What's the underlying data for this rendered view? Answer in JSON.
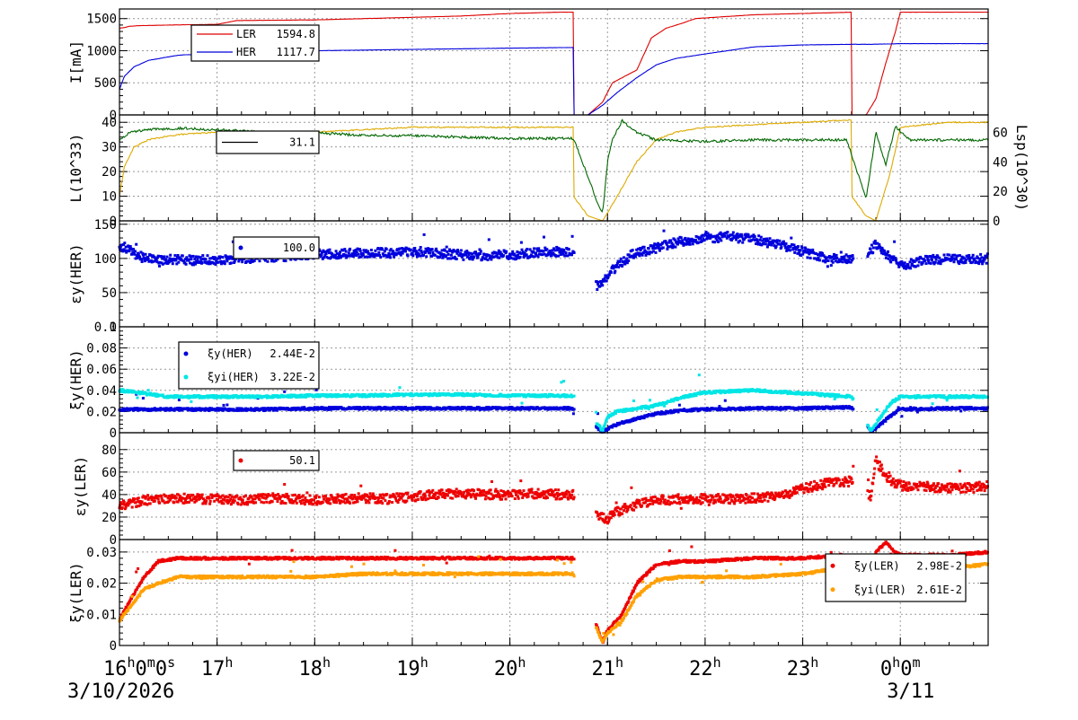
{
  "time_axis": {
    "tick_labels": [
      {
        "t": 0,
        "main": "16",
        "sup": "h",
        "rest": "0",
        "sup2": "m",
        "rest2": "0",
        "sup3": "s"
      },
      {
        "t": 1,
        "main": "17",
        "sup": "h"
      },
      {
        "t": 2,
        "main": "18",
        "sup": "h"
      },
      {
        "t": 3,
        "main": "19",
        "sup": "h"
      },
      {
        "t": 4,
        "main": "20",
        "sup": "h"
      },
      {
        "t": 5,
        "main": "21",
        "sup": "h"
      },
      {
        "t": 6,
        "main": "22",
        "sup": "h"
      },
      {
        "t": 7,
        "main": "23",
        "sup": "h"
      },
      {
        "t": 8,
        "main": "0",
        "sup": "h",
        "rest": "0",
        "sup2": "m"
      }
    ],
    "date_labels": [
      {
        "t": 0,
        "text": "3/10/2026"
      },
      {
        "t": 8,
        "text": "3/11"
      }
    ],
    "range_hours": [
      0,
      8.9
    ]
  },
  "chart_data": [
    {
      "type": "line",
      "panel": "current",
      "ylabel": "I[mA]",
      "ylim": [
        0,
        1650
      ],
      "yticks": [
        0,
        500,
        1000,
        1500
      ],
      "grid": true,
      "legend": [
        {
          "name": "LER",
          "value": "1594.8",
          "color": "#dd0000"
        },
        {
          "name": "HER",
          "value": "1117.7",
          "color": "#0000dd"
        }
      ],
      "series": [
        {
          "name": "LER",
          "color": "#dd0000",
          "x": [
            0,
            0.05,
            0.1,
            0.2,
            0.5,
            1.0,
            1.2,
            2.0,
            3.0,
            3.5,
            4.0,
            4.5,
            4.65,
            4.65,
            4.8,
            4.95,
            5.05,
            5.3,
            5.45,
            5.6,
            5.75,
            5.9,
            6.5,
            7.0,
            7.5,
            7.5,
            7.65,
            7.75,
            7.85,
            7.95,
            8.0,
            8.9
          ],
          "y": [
            1350,
            1360,
            1380,
            1390,
            1400,
            1410,
            1470,
            1480,
            1520,
            1540,
            1580,
            1600,
            1600,
            0,
            0,
            200,
            500,
            700,
            1200,
            1350,
            1420,
            1500,
            1560,
            1580,
            1600,
            0,
            0,
            250,
            800,
            1300,
            1600,
            1600
          ]
        },
        {
          "name": "HER",
          "color": "#0000dd",
          "x": [
            0,
            0.05,
            0.15,
            0.3,
            0.6,
            1.0,
            1.5,
            2.0,
            3.0,
            4.0,
            4.65,
            4.65,
            4.8,
            4.95,
            5.1,
            5.3,
            5.5,
            5.7,
            6.0,
            6.5,
            7.0,
            7.5,
            7.7,
            8.0,
            8.9
          ],
          "y": [
            400,
            600,
            750,
            850,
            930,
            960,
            980,
            1000,
            1020,
            1040,
            1050,
            0,
            0,
            150,
            350,
            580,
            780,
            880,
            950,
            1060,
            1090,
            1100,
            1100,
            1110,
            1110
          ]
        }
      ]
    },
    {
      "type": "line",
      "panel": "luminosity",
      "ylabel": "L(10^33)",
      "ylim": [
        0,
        43
      ],
      "yticks": [
        0,
        10,
        20,
        30,
        40
      ],
      "y2label": "Lsp(10^30)",
      "y2lim": [
        0,
        72
      ],
      "y2ticks": [
        0,
        20,
        40,
        60
      ],
      "grid": true,
      "legend": [
        {
          "name": "",
          "value": "31.1",
          "color": "#000000"
        }
      ],
      "series": [
        {
          "name": "L",
          "axis": "left",
          "color": "#ddaa00",
          "x": [
            0,
            0.05,
            0.15,
            0.3,
            0.6,
            1.0,
            1.5,
            2.0,
            3.0,
            4.0,
            4.65,
            4.65,
            4.8,
            4.95,
            5.1,
            5.3,
            5.5,
            5.7,
            6.0,
            6.5,
            7.0,
            7.5,
            7.5,
            7.65,
            7.75,
            7.9,
            8.0,
            8.5,
            8.9
          ],
          "y": [
            10,
            22,
            30,
            33,
            35,
            36,
            36,
            36,
            38,
            38,
            38,
            10,
            2,
            0,
            10,
            24,
            33,
            36,
            38,
            39,
            40,
            41,
            10,
            2,
            0,
            20,
            38,
            40,
            40
          ]
        },
        {
          "name": "Lsp",
          "axis": "right",
          "color": "#006600",
          "x": [
            0,
            0.1,
            0.3,
            0.6,
            1.0,
            1.5,
            2.0,
            2.5,
            3.0,
            3.5,
            4.0,
            4.65,
            4.8,
            4.9,
            4.95,
            5.0,
            5.05,
            5.15,
            5.3,
            5.5,
            6.0,
            6.5,
            7.0,
            7.45,
            7.55,
            7.65,
            7.75,
            7.85,
            7.95,
            8.1,
            8.5,
            8.9
          ],
          "y": [
            55,
            60,
            62,
            63,
            62,
            60,
            60,
            58,
            58,
            57,
            56,
            56,
            30,
            12,
            5,
            40,
            55,
            68,
            60,
            55,
            54,
            55,
            55,
            55,
            35,
            15,
            60,
            38,
            64,
            55,
            55,
            55
          ]
        }
      ]
    },
    {
      "type": "scatter",
      "panel": "eps_y_her",
      "ylabel": "εy(HER)",
      "ylim": [
        0,
        155
      ],
      "yticks": [
        0,
        50,
        100,
        150
      ],
      "grid": true,
      "legend": [
        {
          "name": "",
          "value": "100.0",
          "color": "#0000dd"
        }
      ],
      "series": [
        {
          "name": "εy(HER)",
          "color": "#0000dd",
          "x": [
            0,
            0.25,
            0.5,
            0.75,
            1.0,
            1.25,
            1.5,
            1.75,
            2.0,
            2.25,
            2.5,
            2.75,
            3.0,
            3.25,
            3.5,
            3.75,
            4.0,
            4.25,
            4.5,
            4.65,
            4.9,
            5.0,
            5.1,
            5.25,
            5.5,
            5.75,
            6.0,
            6.25,
            6.5,
            6.75,
            7.0,
            7.25,
            7.5,
            7.6,
            7.75,
            7.9,
            8.0,
            8.25,
            8.5,
            8.75,
            8.9
          ],
          "y": [
            120,
            100,
            98,
            97,
            98,
            100,
            102,
            103,
            106,
            107,
            108,
            108,
            110,
            108,
            105,
            104,
            105,
            108,
            110,
            110,
            60,
            75,
            90,
            105,
            115,
            125,
            130,
            132,
            128,
            120,
            110,
            100,
            98,
            95,
            120,
            100,
            88,
            98,
            100,
            98,
            100
          ]
        }
      ]
    },
    {
      "type": "scatter",
      "panel": "xi_y_her",
      "ylabel": "ξy(HER)",
      "ylim": [
        0,
        0.1
      ],
      "yticks": [
        0,
        0.02,
        0.04,
        0.06,
        0.08,
        0.1
      ],
      "grid": true,
      "legend": [
        {
          "name": "ξy(HER)",
          "value": "2.44E-2",
          "color": "#0000dd"
        },
        {
          "name": "ξyi(HER)",
          "value": "3.22E-2",
          "color": "#00e5e5"
        }
      ],
      "series": [
        {
          "name": "ξy(HER)",
          "color": "#0000dd",
          "x": [
            0,
            0.5,
            1.0,
            1.5,
            2.0,
            2.5,
            3.0,
            3.5,
            4.0,
            4.65,
            4.95,
            5.0,
            5.1,
            5.25,
            5.5,
            5.75,
            6.0,
            6.5,
            7.0,
            7.5,
            7.7,
            7.8,
            7.9,
            8.0,
            8.5,
            8.9
          ],
          "y": [
            0.022,
            0.022,
            0.022,
            0.022,
            0.023,
            0.023,
            0.023,
            0.023,
            0.023,
            0.023,
            0.001,
            0.004,
            0.008,
            0.012,
            0.018,
            0.021,
            0.022,
            0.023,
            0.023,
            0.024,
            0.001,
            0.008,
            0.016,
            0.022,
            0.023,
            0.023
          ]
        },
        {
          "name": "ξyi(HER)",
          "color": "#00e5e5",
          "x": [
            0,
            0.5,
            1.0,
            1.5,
            2.0,
            2.5,
            3.0,
            3.5,
            4.0,
            4.65,
            4.95,
            5.0,
            5.1,
            5.25,
            5.5,
            5.75,
            6.0,
            6.5,
            7.0,
            7.5,
            7.7,
            7.8,
            7.9,
            8.0,
            8.5,
            8.9
          ],
          "y": [
            0.04,
            0.034,
            0.034,
            0.034,
            0.035,
            0.035,
            0.036,
            0.036,
            0.035,
            0.035,
            0.002,
            0.015,
            0.02,
            0.022,
            0.026,
            0.033,
            0.038,
            0.04,
            0.037,
            0.034,
            0.002,
            0.015,
            0.028,
            0.034,
            0.034,
            0.034
          ]
        }
      ]
    },
    {
      "type": "scatter",
      "panel": "eps_y_ler",
      "ylabel": "εy(LER)",
      "ylim": [
        0,
        95
      ],
      "yticks": [
        0,
        20,
        40,
        60,
        80
      ],
      "grid": true,
      "legend": [
        {
          "name": "",
          "value": "50.1",
          "color": "#ee0000"
        }
      ],
      "series": [
        {
          "name": "εy(LER)",
          "color": "#ee0000",
          "x": [
            0,
            0.25,
            0.5,
            0.75,
            1.0,
            1.25,
            1.5,
            1.75,
            2.0,
            2.25,
            2.5,
            2.75,
            3.0,
            3.25,
            3.5,
            3.75,
            4.0,
            4.25,
            4.5,
            4.65,
            4.9,
            5.0,
            5.1,
            5.25,
            5.5,
            5.75,
            6.0,
            6.25,
            6.5,
            6.75,
            7.0,
            7.25,
            7.5,
            7.7,
            7.75,
            7.9,
            8.0,
            8.25,
            8.5,
            8.75,
            8.9
          ],
          "y": [
            30,
            35,
            37,
            36,
            36,
            35,
            37,
            36,
            35,
            36,
            37,
            36,
            38,
            40,
            41,
            40,
            40,
            41,
            40,
            40,
            20,
            18,
            25,
            30,
            35,
            36,
            36,
            36,
            37,
            38,
            45,
            50,
            52,
            38,
            70,
            52,
            48,
            47,
            46,
            46,
            48
          ]
        }
      ]
    },
    {
      "type": "scatter",
      "panel": "xi_y_ler",
      "ylabel": "ξy(LER)",
      "ylim": [
        0,
        0.034
      ],
      "yticks": [
        0,
        0.01,
        0.02,
        0.03
      ],
      "grid": true,
      "legend": [
        {
          "name": "ξy(LER)",
          "value": "2.98E-2",
          "color": "#ee0000"
        },
        {
          "name": "ξyi(LER)",
          "value": "2.61E-2",
          "color": "#ffa000"
        }
      ],
      "series": [
        {
          "name": "ξy(LER)",
          "color": "#ee0000",
          "x": [
            0,
            0.1,
            0.25,
            0.4,
            0.6,
            1.0,
            1.5,
            2.0,
            2.5,
            3.0,
            3.5,
            4.0,
            4.65,
            4.95,
            5.0,
            5.15,
            5.3,
            5.5,
            5.75,
            6.0,
            6.5,
            7.0,
            7.4,
            7.7,
            7.75,
            7.85,
            7.95,
            8.0,
            8.5,
            8.9
          ],
          "y": [
            0.008,
            0.014,
            0.022,
            0.027,
            0.028,
            0.028,
            0.028,
            0.028,
            0.028,
            0.028,
            0.028,
            0.028,
            0.028,
            0.001,
            0.005,
            0.01,
            0.02,
            0.026,
            0.027,
            0.027,
            0.028,
            0.028,
            0.029,
            0.018,
            0.03,
            0.033,
            0.03,
            0.029,
            0.029,
            0.03
          ]
        },
        {
          "name": "ξyi(LER)",
          "color": "#ffa000",
          "x": [
            0,
            0.1,
            0.25,
            0.4,
            0.6,
            1.0,
            1.5,
            2.0,
            2.5,
            3.0,
            3.5,
            4.0,
            4.65,
            4.95,
            5.0,
            5.15,
            5.3,
            5.5,
            5.75,
            6.0,
            6.5,
            7.0,
            7.4,
            7.7,
            7.8,
            8.0,
            8.5,
            8.9
          ],
          "y": [
            0.008,
            0.012,
            0.018,
            0.02,
            0.022,
            0.022,
            0.022,
            0.022,
            0.023,
            0.023,
            0.023,
            0.023,
            0.023,
            0.001,
            0.004,
            0.008,
            0.016,
            0.021,
            0.022,
            0.022,
            0.022,
            0.023,
            0.025,
            0.026,
            0.024,
            0.025,
            0.025,
            0.026
          ]
        }
      ]
    }
  ]
}
